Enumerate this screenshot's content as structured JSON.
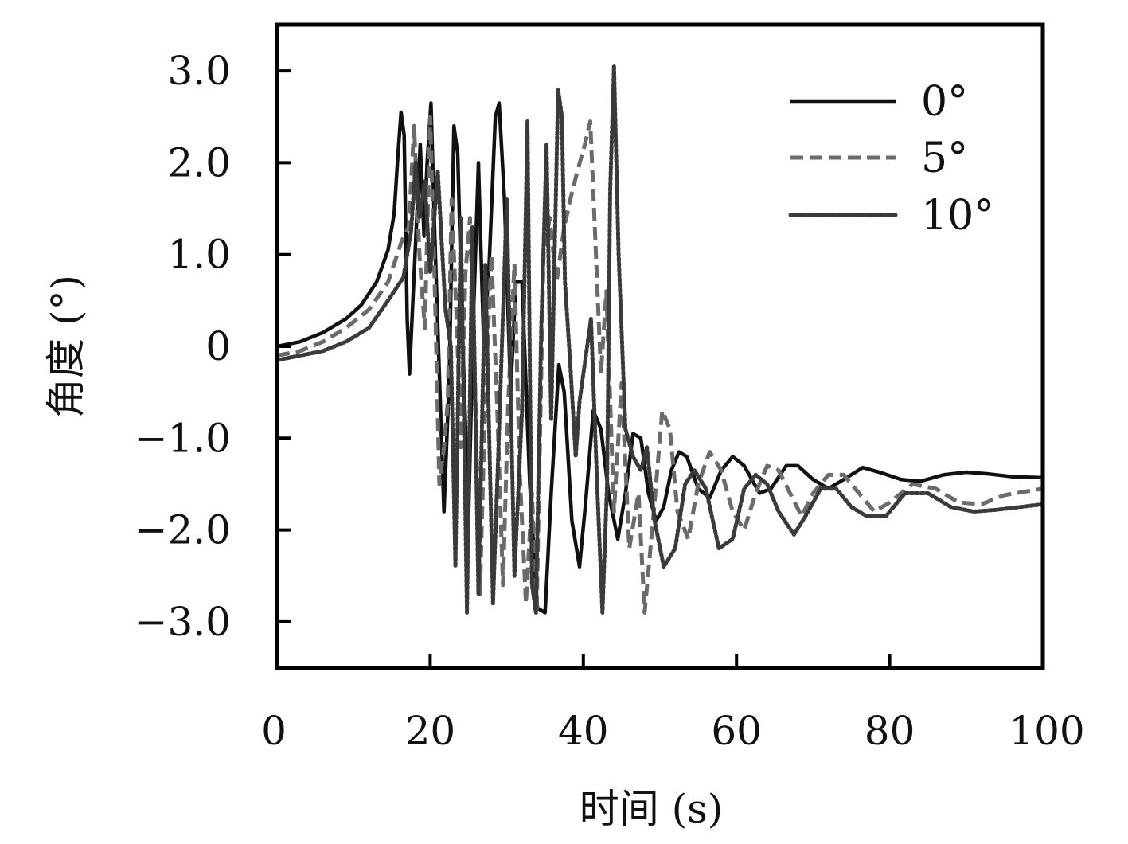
{
  "chart_data": {
    "type": "line",
    "xlabel": "时间 (s)",
    "ylabel": "角度 (°)",
    "xlim": [
      0,
      100
    ],
    "ylim": [
      -3.5,
      3.5
    ],
    "x_ticks": [
      0,
      20,
      40,
      60,
      80,
      100
    ],
    "x_tick_labels": [
      "0",
      "20",
      "40",
      "60",
      "80",
      "100"
    ],
    "y_ticks": [
      3.0,
      2.0,
      1.0,
      0,
      -1.0,
      -2.0,
      -3.0
    ],
    "y_tick_labels": [
      "3.0",
      "2.0",
      "1.0",
      "0",
      "−1.0",
      "−2.0",
      "−3.0"
    ],
    "grid": false,
    "legend_position": "top-right",
    "series": [
      {
        "name": "0°",
        "color": "#111111",
        "dash": "solid",
        "points": [
          [
            0,
            0.0
          ],
          [
            3,
            0.05
          ],
          [
            6,
            0.15
          ],
          [
            9,
            0.3
          ],
          [
            11,
            0.45
          ],
          [
            13,
            0.7
          ],
          [
            14.5,
            1.05
          ],
          [
            15.3,
            1.45
          ],
          [
            15.8,
            2.1
          ],
          [
            16.2,
            2.55
          ],
          [
            16.6,
            2.3
          ],
          [
            17.0,
            0.3
          ],
          [
            17.3,
            -0.3
          ],
          [
            17.8,
            0.6
          ],
          [
            18.7,
            2.2
          ],
          [
            19.2,
            1.2
          ],
          [
            19.6,
            2.0
          ],
          [
            20.1,
            2.65
          ],
          [
            20.6,
            1.2
          ],
          [
            21.2,
            -0.3
          ],
          [
            21.8,
            -1.8
          ],
          [
            22.5,
            -0.3
          ],
          [
            23.1,
            2.4
          ],
          [
            23.6,
            2.1
          ],
          [
            24.2,
            0.2
          ],
          [
            25.0,
            -1.9
          ],
          [
            25.6,
            0.2
          ],
          [
            26.3,
            2.0
          ],
          [
            27.0,
            0.0
          ],
          [
            27.7,
            0.9
          ],
          [
            28.5,
            2.5
          ],
          [
            29.0,
            2.65
          ],
          [
            29.7,
            1.6
          ],
          [
            30.5,
            -0.5
          ],
          [
            31.2,
            0.7
          ],
          [
            32.0,
            0.7
          ],
          [
            33.0,
            -1.5
          ],
          [
            34.0,
            -2.85
          ],
          [
            35.0,
            -2.9
          ],
          [
            35.8,
            -1.6
          ],
          [
            36.8,
            -0.2
          ],
          [
            37.5,
            -0.5
          ],
          [
            38.5,
            -1.9
          ],
          [
            39.5,
            -2.4
          ],
          [
            40.3,
            -1.7
          ],
          [
            41.3,
            -0.7
          ],
          [
            42.3,
            -0.9
          ],
          [
            43.3,
            -1.6
          ],
          [
            44.5,
            -2.1
          ],
          [
            45.5,
            -1.6
          ],
          [
            46.5,
            -0.95
          ],
          [
            47.5,
            -1.0
          ],
          [
            48.5,
            -1.6
          ],
          [
            49.5,
            -1.9
          ],
          [
            50.5,
            -1.75
          ],
          [
            51.5,
            -1.35
          ],
          [
            52.5,
            -1.15
          ],
          [
            53.5,
            -1.2
          ],
          [
            55.0,
            -1.55
          ],
          [
            56.5,
            -1.65
          ],
          [
            58.0,
            -1.35
          ],
          [
            59.5,
            -1.2
          ],
          [
            61.0,
            -1.3
          ],
          [
            63.0,
            -1.6
          ],
          [
            64.5,
            -1.55
          ],
          [
            66.5,
            -1.3
          ],
          [
            68.0,
            -1.3
          ],
          [
            70.0,
            -1.45
          ],
          [
            72.0,
            -1.55
          ],
          [
            74.0,
            -1.45
          ],
          [
            76.5,
            -1.32
          ],
          [
            79.0,
            -1.38
          ],
          [
            81.5,
            -1.45
          ],
          [
            84.0,
            -1.47
          ],
          [
            87.0,
            -1.4
          ],
          [
            90.0,
            -1.37
          ],
          [
            93.0,
            -1.39
          ],
          [
            96.0,
            -1.42
          ],
          [
            100.0,
            -1.43
          ]
        ]
      },
      {
        "name": "5°",
        "color": "#6b6b6b",
        "dash": "dashed",
        "points": [
          [
            0,
            -0.1
          ],
          [
            3,
            -0.05
          ],
          [
            6,
            0.05
          ],
          [
            9,
            0.2
          ],
          [
            12,
            0.4
          ],
          [
            14.5,
            0.7
          ],
          [
            16.3,
            1.15
          ],
          [
            17.2,
            1.3
          ],
          [
            17.9,
            2.4
          ],
          [
            18.6,
            1.0
          ],
          [
            19.3,
            0.2
          ],
          [
            20.0,
            2.5
          ],
          [
            20.5,
            1.0
          ],
          [
            21.2,
            -1.5
          ],
          [
            21.8,
            -1.1
          ],
          [
            22.3,
            -0.6
          ],
          [
            22.8,
            1.6
          ],
          [
            23.5,
            0.2
          ],
          [
            24.0,
            -1.1
          ],
          [
            24.6,
            0.8
          ],
          [
            25.2,
            1.4
          ],
          [
            25.8,
            -0.2
          ],
          [
            26.5,
            -2.7
          ],
          [
            27.2,
            -0.5
          ],
          [
            28.0,
            1.0
          ],
          [
            28.8,
            -0.8
          ],
          [
            29.5,
            -2.6
          ],
          [
            30.2,
            -0.6
          ],
          [
            31.0,
            0.9
          ],
          [
            31.7,
            -1.4
          ],
          [
            32.5,
            -2.8
          ],
          [
            33.3,
            -1.6
          ],
          [
            33.9,
            -2.9
          ],
          [
            34.8,
            1.0
          ],
          [
            35.6,
            1.4
          ],
          [
            36.5,
            0.7
          ],
          [
            37.5,
            1.3
          ],
          [
            38.3,
            1.6
          ],
          [
            39.2,
            1.9
          ],
          [
            40.2,
            2.2
          ],
          [
            40.9,
            2.45
          ],
          [
            41.5,
            1.3
          ],
          [
            42.3,
            -0.3
          ],
          [
            43.0,
            0.6
          ],
          [
            44.0,
            -1.8
          ],
          [
            45.0,
            -0.4
          ],
          [
            46.0,
            -2.2
          ],
          [
            47.2,
            -1.6
          ],
          [
            48.0,
            -2.9
          ],
          [
            49.2,
            -1.8
          ],
          [
            50.3,
            -0.7
          ],
          [
            51.3,
            -0.9
          ],
          [
            52.3,
            -1.8
          ],
          [
            53.7,
            -2.1
          ],
          [
            55.0,
            -1.5
          ],
          [
            56.5,
            -1.15
          ],
          [
            58.0,
            -1.35
          ],
          [
            59.5,
            -1.8
          ],
          [
            61.0,
            -2.0
          ],
          [
            62.5,
            -1.6
          ],
          [
            64.0,
            -1.3
          ],
          [
            65.5,
            -1.35
          ],
          [
            67.0,
            -1.6
          ],
          [
            68.5,
            -1.85
          ],
          [
            70.0,
            -1.6
          ],
          [
            72.0,
            -1.4
          ],
          [
            74.0,
            -1.4
          ],
          [
            76.0,
            -1.6
          ],
          [
            78.0,
            -1.8
          ],
          [
            80.0,
            -1.7
          ],
          [
            83.0,
            -1.5
          ],
          [
            86.0,
            -1.55
          ],
          [
            89.0,
            -1.7
          ],
          [
            92.0,
            -1.72
          ],
          [
            95.0,
            -1.62
          ],
          [
            100.0,
            -1.55
          ]
        ]
      },
      {
        "name": "10°",
        "color": "#3a3a3a",
        "dash": "dotted",
        "points": [
          [
            0,
            -0.15
          ],
          [
            3,
            -0.1
          ],
          [
            6,
            -0.05
          ],
          [
            9,
            0.05
          ],
          [
            12,
            0.2
          ],
          [
            14.5,
            0.5
          ],
          [
            16.5,
            0.75
          ],
          [
            17.5,
            1.25
          ],
          [
            18.1,
            2.0
          ],
          [
            18.6,
            1.4
          ],
          [
            19.3,
            1.8
          ],
          [
            20.0,
            0.8
          ],
          [
            21.0,
            1.9
          ],
          [
            22.0,
            0.4
          ],
          [
            22.7,
            0.0
          ],
          [
            23.3,
            -2.4
          ],
          [
            24.0,
            1.4
          ],
          [
            24.8,
            -2.9
          ],
          [
            25.5,
            1.3
          ],
          [
            26.3,
            -2.7
          ],
          [
            27.2,
            0.9
          ],
          [
            28.2,
            -2.8
          ],
          [
            29.0,
            -0.9
          ],
          [
            30.0,
            1.6
          ],
          [
            31.0,
            -2.5
          ],
          [
            32.0,
            -0.7
          ],
          [
            32.7,
            2.45
          ],
          [
            33.3,
            -2.6
          ],
          [
            33.8,
            -2.9
          ],
          [
            34.5,
            0.2
          ],
          [
            35.2,
            2.2
          ],
          [
            35.8,
            -0.8
          ],
          [
            36.3,
            1.2
          ],
          [
            36.7,
            2.8
          ],
          [
            37.2,
            2.5
          ],
          [
            37.6,
            0.7
          ],
          [
            38.3,
            -0.2
          ],
          [
            39.0,
            -1.2
          ],
          [
            39.5,
            -0.6
          ],
          [
            40.0,
            -0.3
          ],
          [
            41.0,
            0.3
          ],
          [
            41.8,
            -1.5
          ],
          [
            42.5,
            -2.9
          ],
          [
            43.1,
            -1.5
          ],
          [
            43.5,
            1.7
          ],
          [
            44.0,
            3.05
          ],
          [
            44.6,
            1.0
          ],
          [
            45.5,
            -0.9
          ],
          [
            46.5,
            -1.2
          ],
          [
            47.5,
            -1.35
          ],
          [
            48.3,
            -1.1
          ],
          [
            49.3,
            -1.9
          ],
          [
            50.5,
            -2.4
          ],
          [
            52.0,
            -2.2
          ],
          [
            53.3,
            -1.5
          ],
          [
            54.5,
            -1.35
          ],
          [
            56.0,
            -1.55
          ],
          [
            57.7,
            -2.2
          ],
          [
            59.5,
            -2.1
          ],
          [
            61.0,
            -1.55
          ],
          [
            62.5,
            -1.4
          ],
          [
            64.0,
            -1.5
          ],
          [
            65.5,
            -1.8
          ],
          [
            67.5,
            -2.05
          ],
          [
            69.0,
            -1.85
          ],
          [
            71.0,
            -1.55
          ],
          [
            73.0,
            -1.55
          ],
          [
            75.0,
            -1.75
          ],
          [
            77.0,
            -1.85
          ],
          [
            79.5,
            -1.85
          ],
          [
            82.0,
            -1.6
          ],
          [
            85.0,
            -1.6
          ],
          [
            88.0,
            -1.75
          ],
          [
            91.0,
            -1.8
          ],
          [
            94.0,
            -1.78
          ],
          [
            97.0,
            -1.75
          ],
          [
            100.0,
            -1.72
          ]
        ]
      }
    ]
  }
}
